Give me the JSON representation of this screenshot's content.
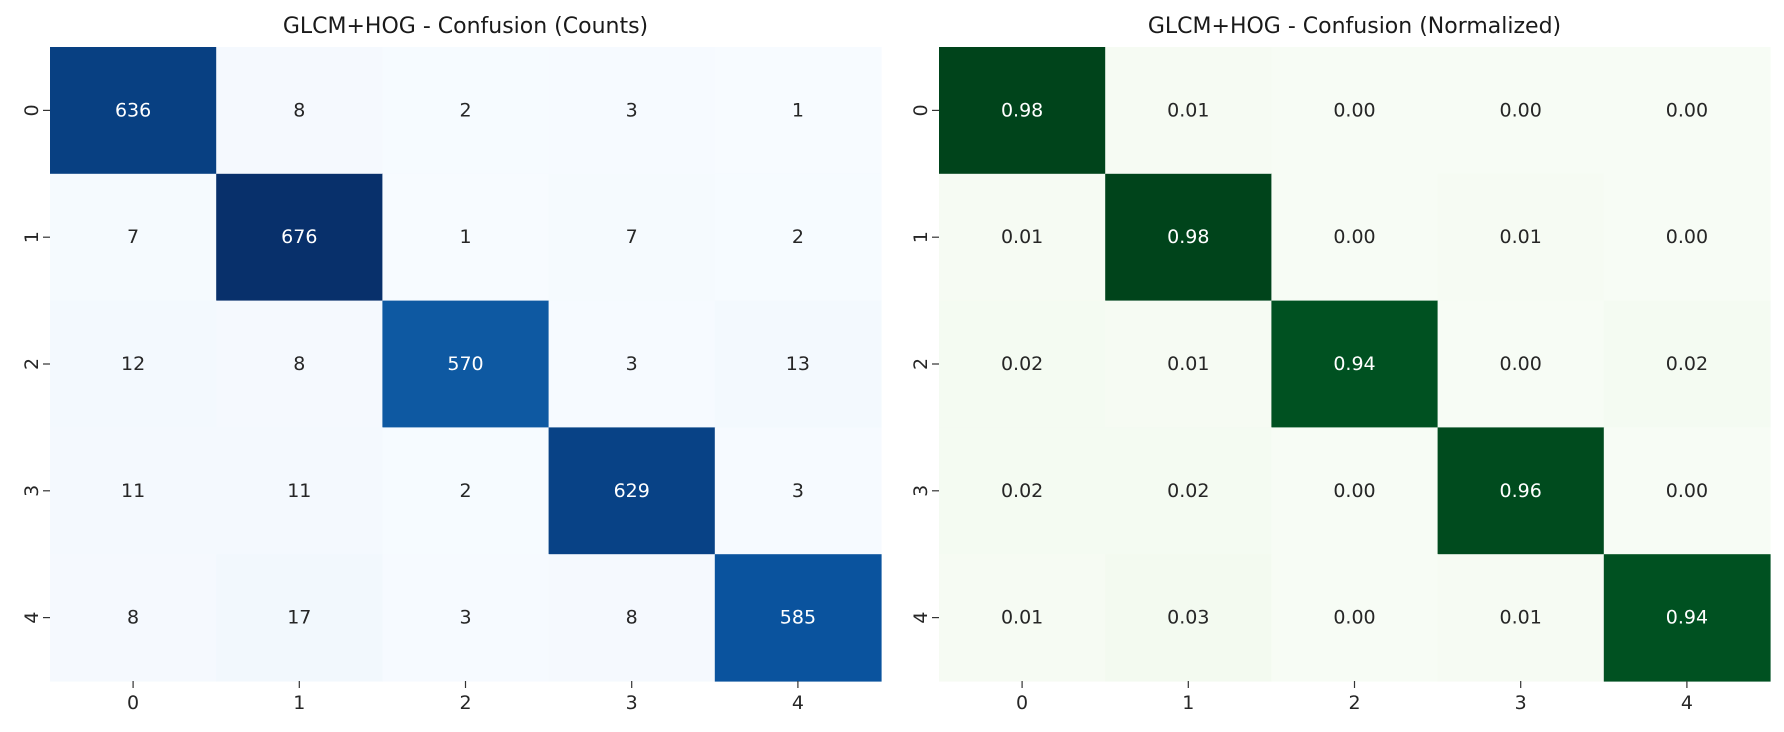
{
  "chart_data": [
    {
      "type": "heatmap",
      "title": "GLCM+HOG - Confusion (Counts)",
      "xlabel": "",
      "ylabel": "",
      "x_ticks": [
        "0",
        "1",
        "2",
        "3",
        "4"
      ],
      "y_ticks": [
        "0",
        "1",
        "2",
        "3",
        "4"
      ],
      "colormap": "Blues",
      "value_range": [
        0,
        676
      ],
      "value_format": "int",
      "colorbar": false,
      "values": [
        [
          636,
          8,
          2,
          3,
          1
        ],
        [
          7,
          676,
          1,
          7,
          2
        ],
        [
          12,
          8,
          570,
          3,
          13
        ],
        [
          11,
          11,
          2,
          629,
          3
        ],
        [
          8,
          17,
          3,
          8,
          585
        ]
      ]
    },
    {
      "type": "heatmap",
      "title": "GLCM+HOG - Confusion (Normalized)",
      "xlabel": "",
      "ylabel": "",
      "x_ticks": [
        "0",
        "1",
        "2",
        "3",
        "4"
      ],
      "y_ticks": [
        "0",
        "1",
        "2",
        "3",
        "4"
      ],
      "colormap": "Greens",
      "value_range": [
        0,
        0.98
      ],
      "value_format": "2f",
      "colorbar": false,
      "values": [
        [
          0.98,
          0.01,
          0.0,
          0.0,
          0.0
        ],
        [
          0.01,
          0.98,
          0.0,
          0.01,
          0.0
        ],
        [
          0.02,
          0.01,
          0.94,
          0.0,
          0.02
        ],
        [
          0.02,
          0.02,
          0.0,
          0.96,
          0.0
        ],
        [
          0.01,
          0.03,
          0.0,
          0.01,
          0.94
        ]
      ]
    }
  ]
}
